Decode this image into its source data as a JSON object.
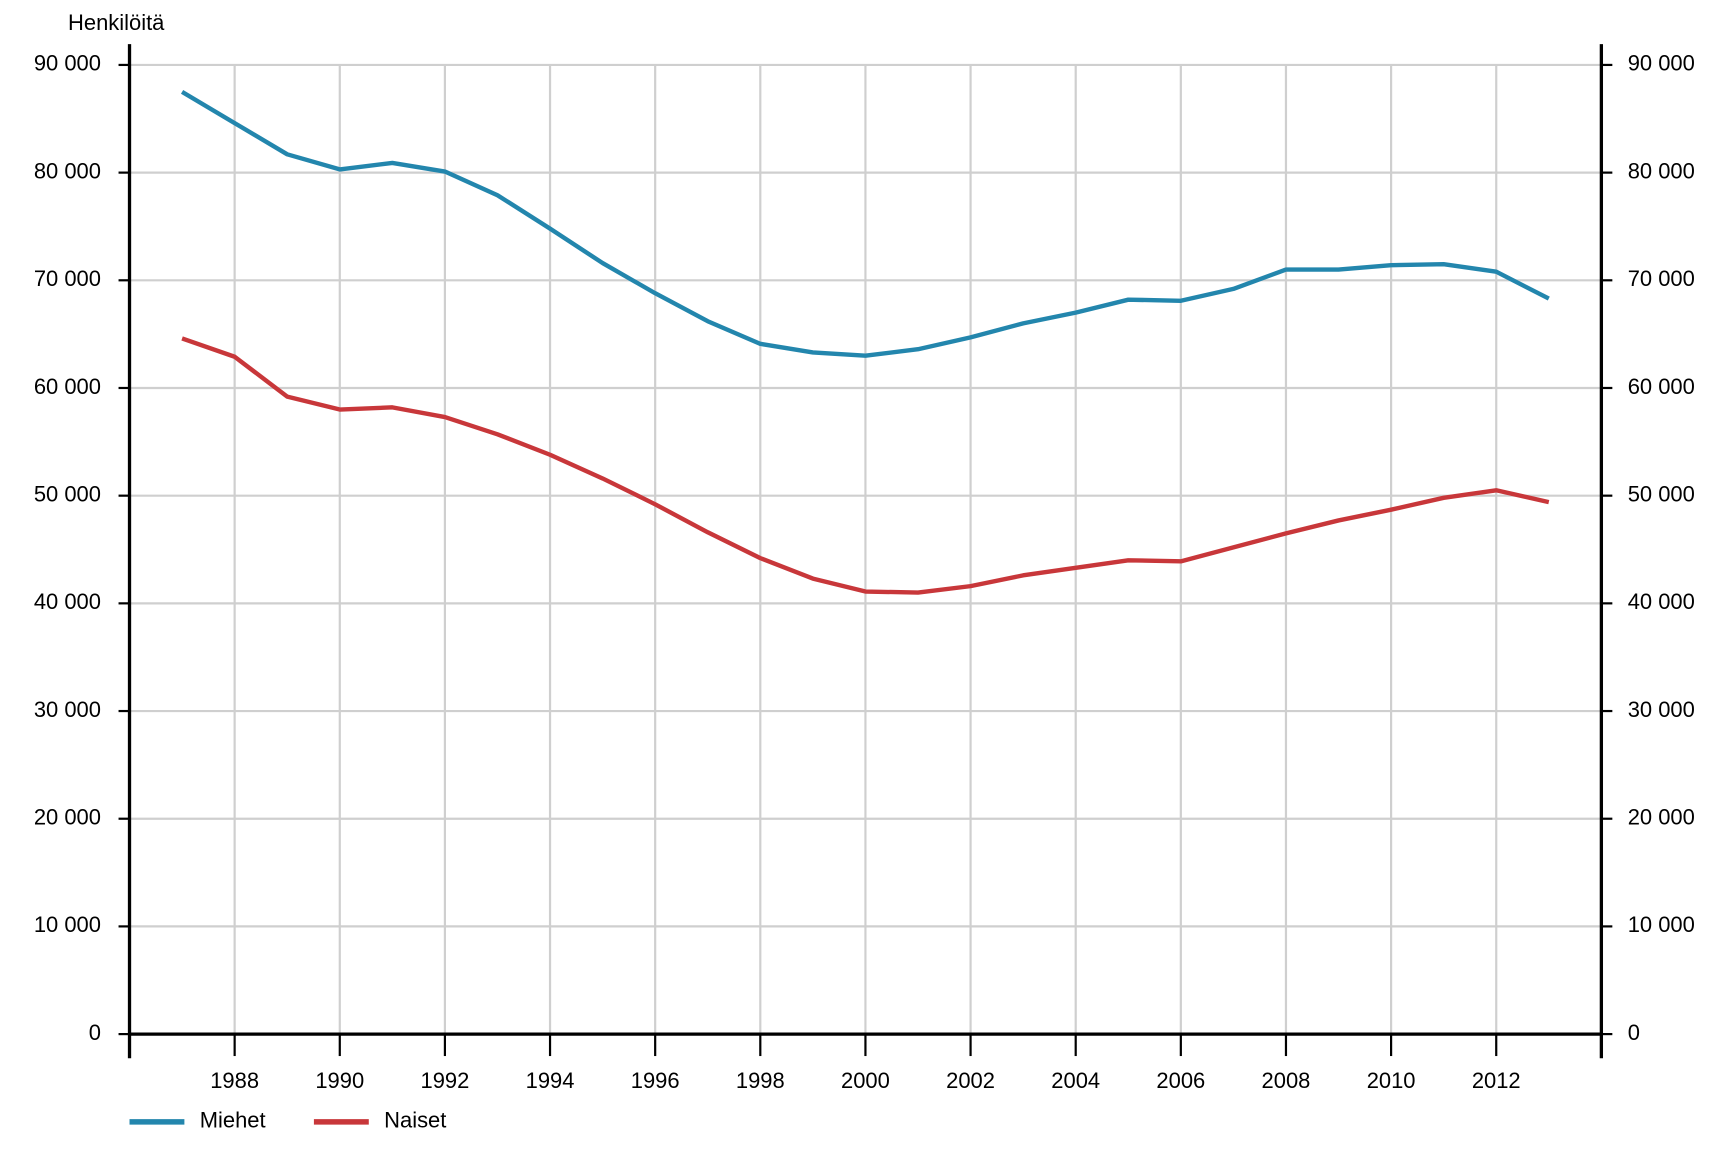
{
  "chart_data": {
    "type": "line",
    "y_label": "Henkilöitä",
    "x": [
      1987,
      1988,
      1989,
      1990,
      1991,
      1992,
      1993,
      1994,
      1995,
      1996,
      1997,
      1998,
      1999,
      2000,
      2001,
      2002,
      2003,
      2004,
      2005,
      2006,
      2007,
      2008,
      2009,
      2010,
      2011,
      2012,
      2013
    ],
    "series": [
      {
        "name": "Miehet",
        "color": "#2386ad",
        "values": [
          87500,
          84600,
          81700,
          80300,
          80900,
          80100,
          77900,
          74800,
          71600,
          68800,
          66200,
          64100,
          63300,
          63000,
          63600,
          64700,
          66000,
          67000,
          68200,
          68100,
          69200,
          71000,
          71000,
          71400,
          71500,
          70800,
          68300
        ]
      },
      {
        "name": "Naiset",
        "color": "#c8373a",
        "values": [
          64600,
          62900,
          59200,
          58000,
          58200,
          57300,
          55700,
          53800,
          51600,
          49200,
          46600,
          44200,
          42300,
          41100,
          41000,
          41600,
          42600,
          43300,
          44000,
          43900,
          45200,
          46500,
          47700,
          48700,
          49800,
          50500,
          49400
        ]
      }
    ],
    "xlim": [
      1986,
      2014
    ],
    "xticks": [
      1988,
      1990,
      1992,
      1994,
      1996,
      1998,
      2000,
      2002,
      2004,
      2006,
      2008,
      2010,
      2012
    ],
    "ylim": [
      0,
      90000
    ],
    "yticks": [
      0,
      {
        "value": 10000,
        "label": "10 000"
      },
      {
        "value": 20000,
        "label": "20 000"
      },
      {
        "value": 30000,
        "label": "30 000"
      },
      {
        "value": 40000,
        "label": "40 000"
      },
      {
        "value": 50000,
        "label": "50 000"
      },
      {
        "value": 60000,
        "label": "60 000"
      },
      {
        "value": 70000,
        "label": "70 000"
      },
      {
        "value": 80000,
        "label": "80 000"
      },
      {
        "value": 90000,
        "label": "90 000"
      }
    ],
    "y2lim": [
      0,
      90000
    ],
    "y2ticks": [
      0,
      {
        "value": 10000,
        "label": "10 000"
      },
      {
        "value": 20000,
        "label": "20 000"
      },
      {
        "value": 30000,
        "label": "30 000"
      },
      {
        "value": 40000,
        "label": "40 000"
      },
      {
        "value": 50000,
        "label": "50 000"
      },
      {
        "value": 60000,
        "label": "60 000"
      },
      {
        "value": 70000,
        "label": "70 000"
      },
      {
        "value": 80000,
        "label": "80 000"
      },
      {
        "value": 90000,
        "label": "90 000"
      }
    ],
    "grid": true,
    "legend": "bottom-left"
  }
}
